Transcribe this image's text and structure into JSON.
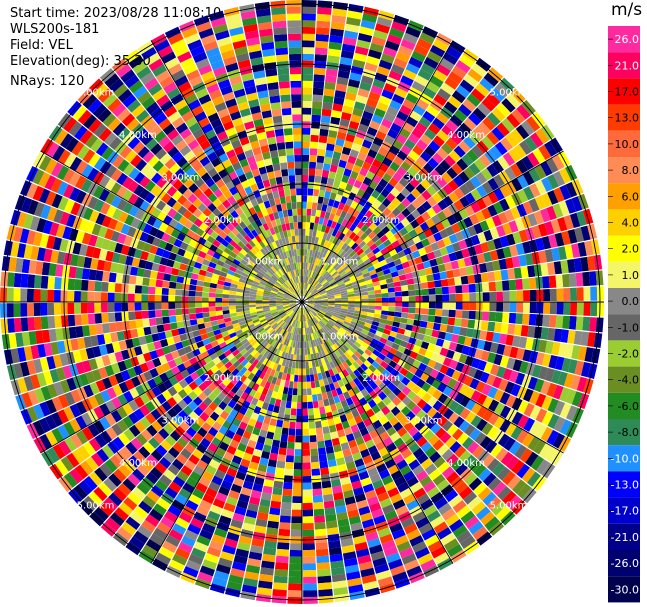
{
  "info": {
    "start_time": "Start time: 2023/08/28 11:08:10",
    "site": "WLS200s-181",
    "field": "Field: VEL",
    "elevation": "Elevation(deg): 35.30",
    "nrays": "NRays: 120"
  },
  "colorbar": {
    "unit": "m/s",
    "ticks": [
      "26.0",
      "21.0",
      "17.0",
      "13.0",
      "10.0",
      "8.0",
      "6.0",
      "4.0",
      "2.0",
      "1.0",
      "0.0",
      "-1.0",
      "-2.0",
      "-4.0",
      "-6.0",
      "-8.0",
      "-10.0",
      "-13.0",
      "-17.0",
      "-21.0",
      "-26.0",
      "-30.0"
    ],
    "colors": [
      "#ff2aa0",
      "#ff0060",
      "#ff0000",
      "#ff3c00",
      "#ff6a3a",
      "#ff8c55",
      "#ffa000",
      "#ffd000",
      "#ffff00",
      "#f5f56a",
      "#888888",
      "#666666",
      "#9acd32",
      "#6b8e23",
      "#228b22",
      "#2e8b57",
      "#1e90ff",
      "#0000ff",
      "#0000cd",
      "#00008b",
      "#000070",
      "#000050"
    ]
  },
  "chart_data": {
    "type": "heatmap",
    "projection": "polar (PPI)",
    "field": "VEL",
    "units": "m/s",
    "nrays": 120,
    "range_rings": [
      {
        "label": "1.00km"
      },
      {
        "label": "2.00km"
      },
      {
        "label": "3.00km"
      },
      {
        "label": "4.00km"
      },
      {
        "label": "5.00km"
      }
    ],
    "grid": true
  }
}
